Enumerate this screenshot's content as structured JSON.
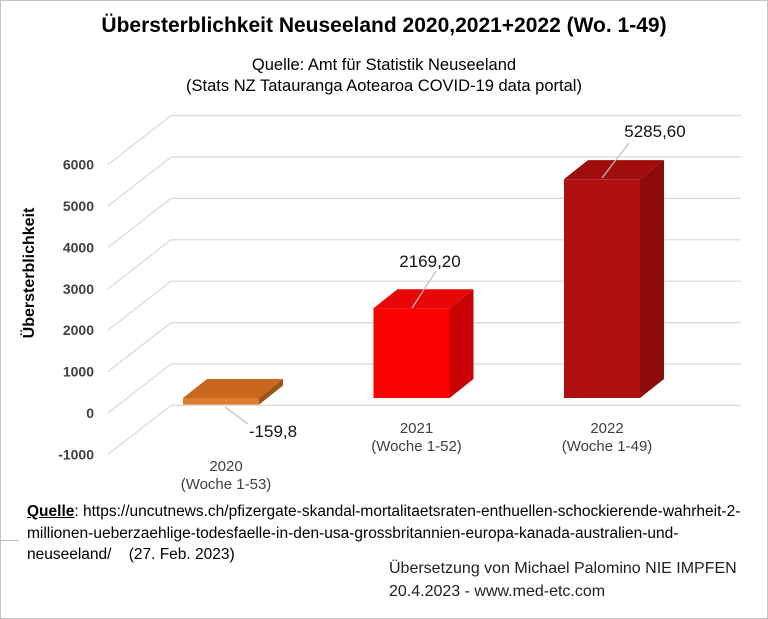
{
  "header": {
    "title": "Übersterblichkeit Neuseeland 2020,2021+2022 (Wo. 1-49)",
    "subtitle_line1": "Quelle: Amt für Statistik Neuseeland",
    "subtitle_line2": "(Stats NZ Tatauranga Aotearoa COVID-19 data portal)"
  },
  "chart_data": {
    "type": "bar",
    "projection": "3d-column",
    "ylabel": "Übersterblichkeit",
    "ylim": [
      -1000,
      6000
    ],
    "yticks": [
      -1000,
      0,
      1000,
      2000,
      3000,
      4000,
      5000,
      6000
    ],
    "grid": true,
    "legend": false,
    "categories": [
      "2020",
      "2021",
      "2022"
    ],
    "bars": [
      {
        "year_label": "2020",
        "weeks_label": "(Woche 1-53)",
        "value": -159.8,
        "value_label": "-159,8",
        "colors": {
          "front": "#e07c2e",
          "top": "#c8681f",
          "side": "#9c5418"
        }
      },
      {
        "year_label": "2021",
        "weeks_label": "(Woche 1-52)",
        "value": 2169.2,
        "value_label": "2169,20",
        "colors": {
          "front": "#fd0101",
          "top": "#e80606",
          "side": "#c90303"
        }
      },
      {
        "year_label": "2022",
        "weeks_label": "(Woche 1-49)",
        "value": 5285.6,
        "value_label": "5285,60",
        "colors": {
          "front": "#b11010",
          "top": "#a00d0d",
          "side": "#8d0a0a"
        }
      }
    ],
    "gridline_color": "#d9d9d9",
    "leader_color": "#bfbfbf",
    "tick_label_color": "#404040"
  },
  "footer": {
    "source_label": "Quelle",
    "source_line1_rest": ": https://uncutnews.ch/pfizergate-skandal-mortalitaetsraten-enthuellen-schockierende-wahrheit-2-",
    "source_line2": "millionen-ueberzaehlige-todesfaelle-in-den-usa-grossbritannien-europa-kanada-australien-und-",
    "source_line3": "neuseeland/    (27. Feb. 2023)",
    "credit_line1": "Übersetzung von Michael Palomino NIE IMPFEN",
    "credit_line2": "20.4.2023 - www.med-etc.com"
  }
}
